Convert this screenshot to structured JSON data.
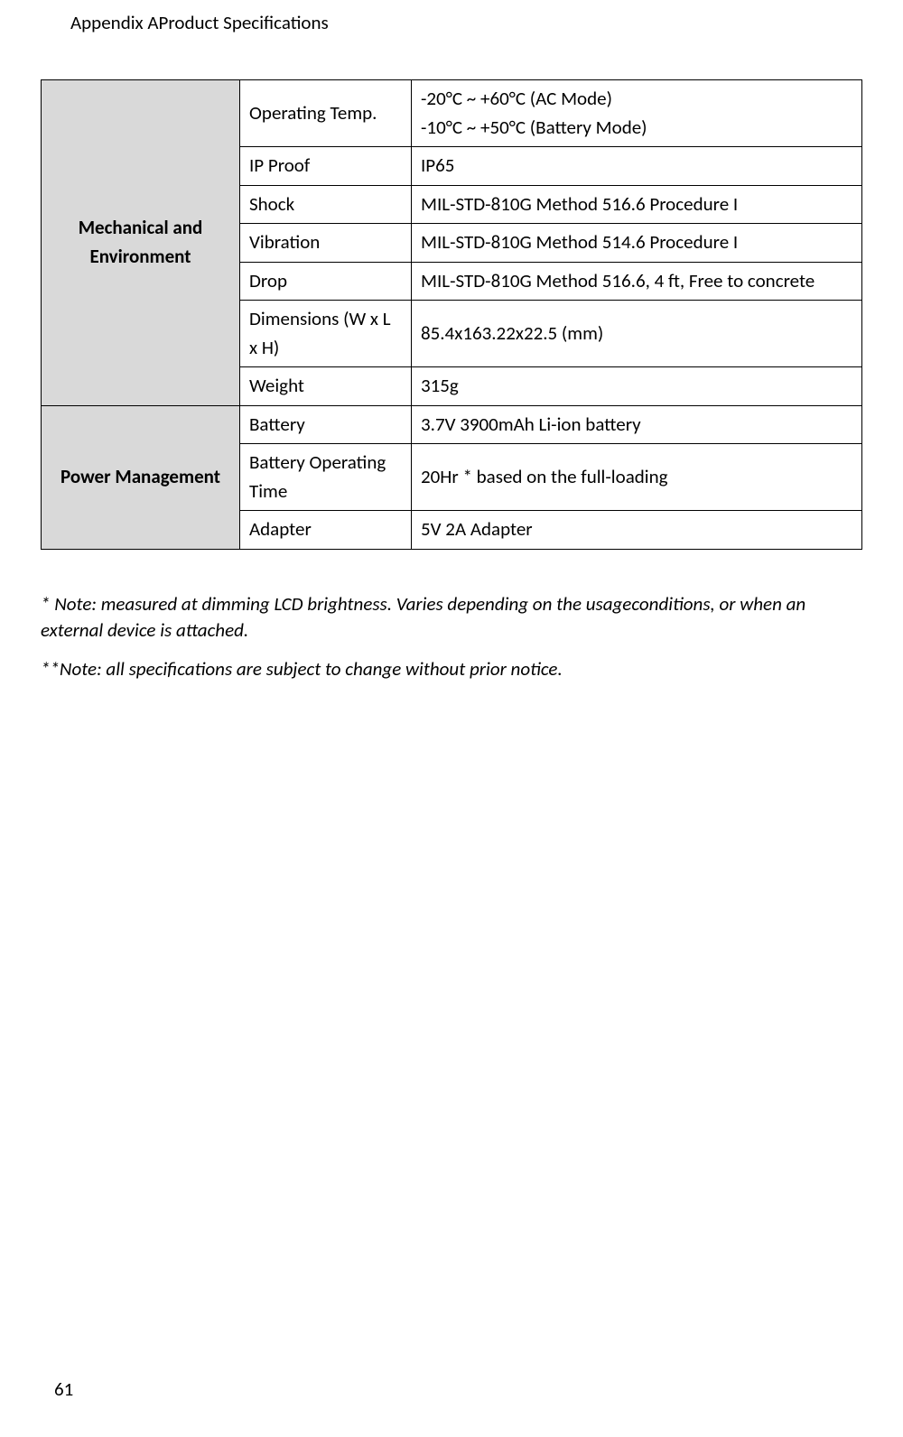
{
  "header": {
    "title": "Appendix AProduct Specifications"
  },
  "table": {
    "sections": [
      {
        "category": "Mechanical and Environment",
        "rows": [
          {
            "label": "Operating Temp.",
            "value": "-20°C ~ +60°C (AC Mode)\n-10°C ~ +50°C (Battery Mode)"
          },
          {
            "label": "IP Proof",
            "value": "IP65"
          },
          {
            "label": "Shock",
            "value": "MIL-STD-810G Method 516.6 Procedure I"
          },
          {
            "label": "Vibration",
            "value": "MIL-STD-810G Method 514.6 Procedure I"
          },
          {
            "label": "Drop",
            "value": "MIL-STD-810G Method 516.6, 4 ft, Free to concrete"
          },
          {
            "label": "Dimensions (W x L x H)",
            "value": "85.4x163.22x22.5 (mm)"
          },
          {
            "label": "Weight",
            "value": "315g"
          }
        ]
      },
      {
        "category": "Power Management",
        "rows": [
          {
            "label": "Battery",
            "value": "3.7V 3900mAh Li-ion battery"
          },
          {
            "label": "Battery Operating Time",
            "value": "20Hr * based on the full-loading"
          },
          {
            "label": "Adapter",
            "value": "5V 2A Adapter"
          }
        ]
      }
    ]
  },
  "footnotes": {
    "note1": "* Note: measured at dimming LCD brightness. Varies depending on the usageconditions, or when an external device is attached.",
    "note2": "**Note: all specifications are subject to change without prior notice."
  },
  "page_number": "61",
  "styling": {
    "background_color": "#ffffff",
    "text_color": "#000000",
    "header_bg": "#d9d9d9",
    "border_color": "#000000",
    "font_family": "Calibri",
    "body_font_size": 21,
    "table_column_widths": [
      220,
      190,
      "auto"
    ]
  }
}
